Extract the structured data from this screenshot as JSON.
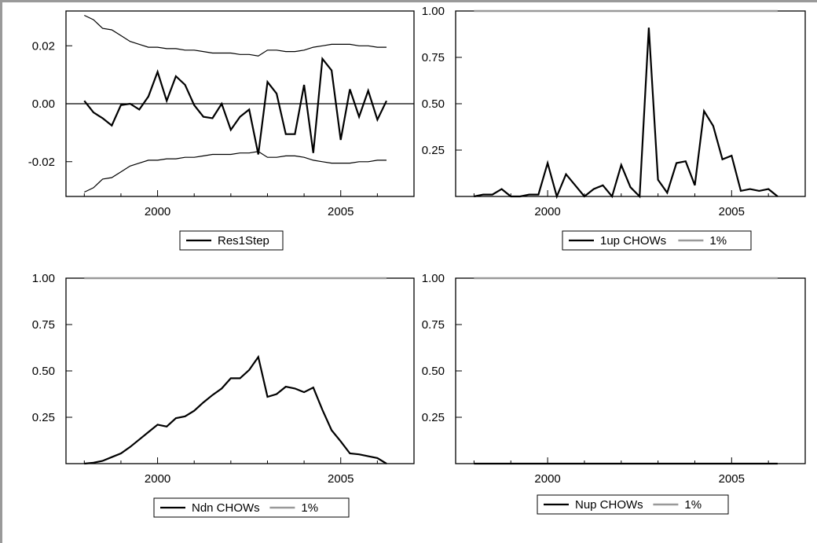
{
  "chart_data": [
    {
      "type": "line",
      "x_ticks": [
        2000,
        2005
      ],
      "x_range": [
        1997.5,
        2007.0
      ],
      "ylim": [
        -0.032,
        0.032
      ],
      "y_ticks": [
        "0.02",
        "0.00",
        "-0.02"
      ],
      "y_tick_values": [
        0.02,
        0.0,
        -0.02
      ],
      "zero_line": true,
      "legend": "bottom-center",
      "series": [
        {
          "name": "Res1Step",
          "role": "main",
          "x": [
            1998.0,
            1998.25,
            1998.5,
            1998.75,
            1999.0,
            1999.25,
            1999.5,
            1999.75,
            2000.0,
            2000.25,
            2000.5,
            2000.75,
            2001.0,
            2001.25,
            2001.5,
            2001.75,
            2002.0,
            2002.25,
            2002.5,
            2002.75,
            2003.0,
            2003.25,
            2003.5,
            2003.75,
            2004.0,
            2004.25,
            2004.5,
            2004.75,
            2005.0,
            2005.25,
            2005.5,
            2005.75,
            2006.0,
            2006.25
          ],
          "y": [
            0.001,
            -0.003,
            -0.005,
            -0.0075,
            -0.0005,
            0.0,
            -0.002,
            0.0025,
            0.011,
            0.001,
            0.0095,
            0.0065,
            -0.0005,
            -0.0045,
            -0.005,
            0.0,
            -0.009,
            -0.0045,
            -0.002,
            -0.0175,
            0.0075,
            0.0035,
            -0.0105,
            -0.0105,
            0.0065,
            -0.017,
            0.0155,
            0.0115,
            -0.0125,
            0.005,
            -0.0045,
            0.0045,
            -0.0055,
            0.001
          ]
        },
        {
          "name": "",
          "role": "upper-band",
          "x": [
            1998.0,
            1998.25,
            1998.5,
            1998.75,
            1999.0,
            1999.25,
            1999.5,
            1999.75,
            2000.0,
            2000.25,
            2000.5,
            2000.75,
            2001.0,
            2001.25,
            2001.5,
            2001.75,
            2002.0,
            2002.25,
            2002.5,
            2002.75,
            2003.0,
            2003.25,
            2003.5,
            2003.75,
            2004.0,
            2004.25,
            2004.5,
            2004.75,
            2005.0,
            2005.25,
            2005.5,
            2005.75,
            2006.0,
            2006.25
          ],
          "y": [
            0.0305,
            0.029,
            0.026,
            0.0255,
            0.0235,
            0.0215,
            0.0205,
            0.0195,
            0.0195,
            0.019,
            0.019,
            0.0185,
            0.0185,
            0.018,
            0.0175,
            0.0175,
            0.0175,
            0.017,
            0.017,
            0.0165,
            0.0185,
            0.0185,
            0.018,
            0.018,
            0.0185,
            0.0195,
            0.02,
            0.0205,
            0.0205,
            0.0205,
            0.02,
            0.02,
            0.0195,
            0.0195
          ]
        },
        {
          "name": "",
          "role": "lower-band",
          "x": [
            1998.0,
            1998.25,
            1998.5,
            1998.75,
            1999.0,
            1999.25,
            1999.5,
            1999.75,
            2000.0,
            2000.25,
            2000.5,
            2000.75,
            2001.0,
            2001.25,
            2001.5,
            2001.75,
            2002.0,
            2002.25,
            2002.5,
            2002.75,
            2003.0,
            2003.25,
            2003.5,
            2003.75,
            2004.0,
            2004.25,
            2004.5,
            2004.75,
            2005.0,
            2005.25,
            2005.5,
            2005.75,
            2006.0,
            2006.25
          ],
          "y": [
            -0.0305,
            -0.029,
            -0.026,
            -0.0255,
            -0.0235,
            -0.0215,
            -0.0205,
            -0.0195,
            -0.0195,
            -0.019,
            -0.019,
            -0.0185,
            -0.0185,
            -0.018,
            -0.0175,
            -0.0175,
            -0.0175,
            -0.017,
            -0.017,
            -0.0165,
            -0.0185,
            -0.0185,
            -0.018,
            -0.018,
            -0.0185,
            -0.0195,
            -0.02,
            -0.0205,
            -0.0205,
            -0.0205,
            -0.02,
            -0.02,
            -0.0195,
            -0.0195
          ]
        }
      ],
      "legend_entries": [
        {
          "label": "Res1Step",
          "color": "#000000"
        }
      ]
    },
    {
      "type": "line",
      "x_ticks": [
        2000,
        2005
      ],
      "x_range": [
        1997.5,
        2007.0
      ],
      "ylim": [
        0,
        1.0
      ],
      "y_ticks": [
        "1.00",
        "0.75",
        "0.50",
        "0.25"
      ],
      "y_tick_values": [
        1.0,
        0.75,
        0.5,
        0.25
      ],
      "zero_line": false,
      "legend": "bottom-center",
      "series": [
        {
          "name": "1up CHOWs",
          "role": "main",
          "x": [
            1998.0,
            1998.25,
            1998.5,
            1998.75,
            1999.0,
            1999.25,
            1999.5,
            1999.75,
            2000.0,
            2000.25,
            2000.5,
            2000.75,
            2001.0,
            2001.25,
            2001.5,
            2001.75,
            2002.0,
            2002.25,
            2002.5,
            2002.75,
            2003.0,
            2003.25,
            2003.5,
            2003.75,
            2004.0,
            2004.25,
            2004.5,
            2004.75,
            2005.0,
            2005.25,
            2005.5,
            2005.75,
            2006.0,
            2006.25
          ],
          "y": [
            0.0,
            0.01,
            0.01,
            0.04,
            0.0,
            0.0,
            0.01,
            0.01,
            0.18,
            0.0,
            0.12,
            0.06,
            0.0,
            0.04,
            0.06,
            0.0,
            0.17,
            0.05,
            0.0,
            0.91,
            0.09,
            0.02,
            0.18,
            0.19,
            0.06,
            0.46,
            0.38,
            0.2,
            0.22,
            0.03,
            0.04,
            0.03,
            0.04,
            0.0
          ]
        },
        {
          "name": "1%",
          "role": "threshold",
          "x": [
            1998.0,
            2006.25
          ],
          "y": [
            1.0,
            1.0
          ]
        }
      ],
      "legend_entries": [
        {
          "label": "1up CHOWs",
          "color": "#000000"
        },
        {
          "label": "1%",
          "color": "#999999"
        }
      ]
    },
    {
      "type": "line",
      "x_ticks": [
        2000,
        2005
      ],
      "x_range": [
        1997.5,
        2007.0
      ],
      "ylim": [
        0,
        1.0
      ],
      "y_ticks": [
        "1.00",
        "0.75",
        "0.50",
        "0.25"
      ],
      "y_tick_values": [
        1.0,
        0.75,
        0.5,
        0.25
      ],
      "zero_line": false,
      "legend": "bottom-center",
      "series": [
        {
          "name": "Ndn CHOWs",
          "role": "main",
          "x": [
            1998.0,
            1998.25,
            1998.5,
            1998.75,
            1999.0,
            1999.25,
            1999.5,
            1999.75,
            2000.0,
            2000.25,
            2000.5,
            2000.75,
            2001.0,
            2001.25,
            2001.5,
            2001.75,
            2002.0,
            2002.25,
            2002.5,
            2002.75,
            2003.0,
            2003.25,
            2003.5,
            2003.75,
            2004.0,
            2004.25,
            2004.5,
            2004.75,
            2005.0,
            2005.25,
            2005.5,
            2005.75,
            2006.0,
            2006.25
          ],
          "y": [
            0.0,
            0.005,
            0.015,
            0.035,
            0.055,
            0.09,
            0.13,
            0.17,
            0.21,
            0.2,
            0.245,
            0.255,
            0.285,
            0.33,
            0.37,
            0.405,
            0.46,
            0.46,
            0.505,
            0.575,
            0.36,
            0.375,
            0.415,
            0.405,
            0.385,
            0.41,
            0.29,
            0.18,
            0.12,
            0.055,
            0.05,
            0.04,
            0.03,
            0.0
          ]
        },
        {
          "name": "1%",
          "role": "threshold",
          "x": [
            1998.0,
            2006.25
          ],
          "y": [
            1.0,
            1.0
          ]
        }
      ],
      "legend_entries": [
        {
          "label": "Ndn CHOWs",
          "color": "#000000"
        },
        {
          "label": "1%",
          "color": "#999999"
        }
      ]
    },
    {
      "type": "line",
      "x_ticks": [
        2000,
        2005
      ],
      "x_range": [
        1997.5,
        2007.0
      ],
      "ylim": [
        0,
        1.0
      ],
      "y_ticks": [
        "1.00",
        "0.75",
        "0.50",
        "0.25"
      ],
      "y_tick_values": [
        1.0,
        0.75,
        0.5,
        0.25
      ],
      "zero_line": false,
      "legend": "bottom-center",
      "series": [
        {
          "name": "Nup CHOWs",
          "role": "main",
          "x": [
            1998.0,
            2006.25
          ],
          "y": [
            0.0,
            0.0
          ]
        },
        {
          "name": "1%",
          "role": "threshold",
          "x": [
            1998.0,
            2006.25
          ],
          "y": [
            1.0,
            1.0
          ]
        }
      ],
      "legend_entries": [
        {
          "label": "Nup CHOWs",
          "color": "#000000"
        },
        {
          "label": "1%",
          "color": "#999999"
        }
      ]
    }
  ]
}
